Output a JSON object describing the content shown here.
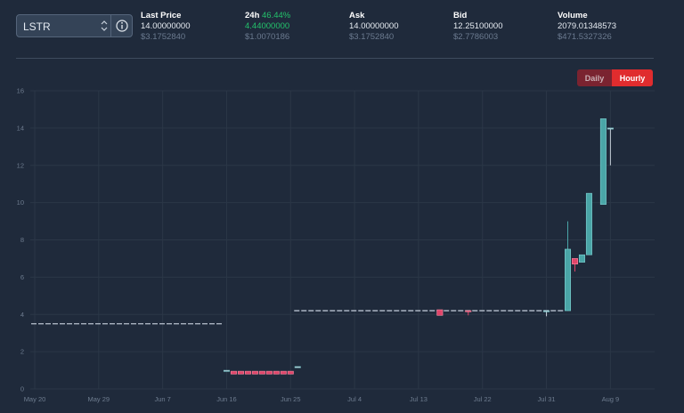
{
  "market": {
    "symbol": "LSTR"
  },
  "stats": {
    "last_price": {
      "label": "Last Price",
      "value": "14.00000000",
      "usd": "$3.1752840"
    },
    "change_24h": {
      "label": "24h",
      "percent": "46.44%",
      "value": "4.44000000",
      "usd": "$1.0070186"
    },
    "ask": {
      "label": "Ask",
      "value": "14.00000000",
      "usd": "$3.1752840"
    },
    "bid": {
      "label": "Bid",
      "value": "12.25100000",
      "usd": "$2.7786003"
    },
    "volume": {
      "label": "Volume",
      "value": "2079.01348573",
      "usd": "$471.5327326"
    }
  },
  "interval_toggle": {
    "daily_label": "Daily",
    "hourly_label": "Hourly",
    "active": "Hourly"
  },
  "colors": {
    "up": "#4aa5a7",
    "down": "#e0456a",
    "positive_text": "#23c26b",
    "accent": "#e02c2e"
  },
  "icons": {
    "select_chevron": "chevron-up-down-icon",
    "info": "info-circle-icon"
  },
  "chart_data": {
    "type": "candlestick",
    "ylim": [
      0,
      16
    ],
    "y_ticks": [
      0,
      2,
      4,
      6,
      8,
      10,
      12,
      14,
      16
    ],
    "x_ticks": [
      "May 20",
      "May 29",
      "Jun 7",
      "Jun 16",
      "Jun 25",
      "Jul 4",
      "Jul 13",
      "Jul 22",
      "Jul 31",
      "Aug 9"
    ],
    "grid": true,
    "segments": [
      {
        "from": "May 20",
        "to": "Jun 16",
        "value": 3.5
      },
      {
        "from": "Jun 26",
        "to": "Aug 3",
        "value": 4.2
      }
    ],
    "candles": [
      {
        "date": "Jun 16",
        "open": 1.0,
        "close": 1.0,
        "high": 1.0,
        "low": 1.0
      },
      {
        "date": "Jun 17",
        "open": 0.95,
        "close": 0.8,
        "high": 0.95,
        "low": 0.8
      },
      {
        "date": "Jun 18",
        "open": 0.95,
        "close": 0.8,
        "high": 0.95,
        "low": 0.8
      },
      {
        "date": "Jun 19",
        "open": 0.95,
        "close": 0.8,
        "high": 0.95,
        "low": 0.8
      },
      {
        "date": "Jun 20",
        "open": 0.95,
        "close": 0.8,
        "high": 0.95,
        "low": 0.8
      },
      {
        "date": "Jun 21",
        "open": 0.95,
        "close": 0.8,
        "high": 0.95,
        "low": 0.8
      },
      {
        "date": "Jun 22",
        "open": 0.95,
        "close": 0.8,
        "high": 0.95,
        "low": 0.8
      },
      {
        "date": "Jun 23",
        "open": 0.95,
        "close": 0.8,
        "high": 0.95,
        "low": 0.8
      },
      {
        "date": "Jun 24",
        "open": 0.95,
        "close": 0.8,
        "high": 0.95,
        "low": 0.8
      },
      {
        "date": "Jun 25",
        "open": 0.95,
        "close": 0.8,
        "high": 0.95,
        "low": 0.8
      },
      {
        "date": "Jun 26",
        "open": 1.2,
        "close": 1.2,
        "high": 1.2,
        "low": 1.2
      },
      {
        "date": "Jul 16",
        "open": 4.25,
        "close": 3.95,
        "high": 4.25,
        "low": 3.95
      },
      {
        "date": "Jul 20",
        "open": 4.2,
        "close": 4.15,
        "high": 4.2,
        "low": 3.95
      },
      {
        "date": "Jul 31",
        "open": 4.2,
        "close": 4.2,
        "high": 4.2,
        "low": 3.9
      },
      {
        "date": "Aug 3",
        "open": 4.2,
        "close": 7.5,
        "high": 9.0,
        "low": 4.2
      },
      {
        "date": "Aug 4",
        "open": 7.0,
        "close": 6.7,
        "high": 7.0,
        "low": 6.3
      },
      {
        "date": "Aug 5",
        "open": 6.8,
        "close": 7.2,
        "high": 7.2,
        "low": 6.8
      },
      {
        "date": "Aug 6",
        "open": 7.2,
        "close": 10.5,
        "high": 10.5,
        "low": 7.2
      },
      {
        "date": "Aug 8",
        "open": 9.9,
        "close": 14.5,
        "high": 14.5,
        "low": 9.9
      },
      {
        "date": "Aug 9",
        "open": 14.0,
        "close": 14.0,
        "high": 14.0,
        "low": 12.0
      }
    ]
  }
}
